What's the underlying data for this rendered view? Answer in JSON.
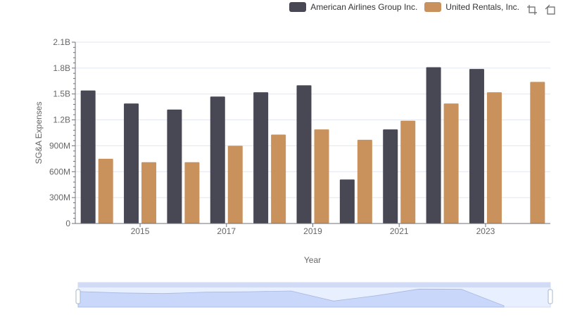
{
  "legend": [
    {
      "name": "American Airlines Group Inc.",
      "color": "#484855"
    },
    {
      "name": "United Rentals, Inc.",
      "color": "#c9925d"
    }
  ],
  "toolbar": {
    "icons": [
      "zoom-icon",
      "restore-icon"
    ]
  },
  "chart_data": {
    "type": "bar",
    "xlabel": "Year",
    "ylabel": "SG&A Expenses",
    "ylim": [
      0,
      2100000000
    ],
    "yticks": [
      0,
      300000000,
      600000000,
      900000000,
      1200000000,
      1500000000,
      1800000000,
      2100000000
    ],
    "ytick_labels": [
      "0",
      "300M",
      "600M",
      "900M",
      "1.2B",
      "1.5B",
      "1.8B",
      "2.1B"
    ],
    "categories": [
      "2014",
      "2015",
      "2016",
      "2017",
      "2018",
      "2019",
      "2020",
      "2021",
      "2022",
      "2023",
      "2024"
    ],
    "xtick_labels": [
      "",
      "2015",
      "",
      "2017",
      "",
      "2019",
      "",
      "2021",
      "",
      "2023",
      ""
    ],
    "grid": true,
    "legend_position": "top-right",
    "series": [
      {
        "name": "American Airlines Group Inc.",
        "color": "#484855",
        "values": [
          1540000000,
          1390000000,
          1320000000,
          1470000000,
          1520000000,
          1600000000,
          510000000,
          1090000000,
          1810000000,
          1790000000,
          null
        ]
      },
      {
        "name": "United Rentals, Inc.",
        "color": "#c9925d",
        "values": [
          750000000,
          710000000,
          710000000,
          900000000,
          1030000000,
          1090000000,
          970000000,
          1190000000,
          1390000000,
          1520000000,
          1640000000
        ]
      }
    ]
  }
}
